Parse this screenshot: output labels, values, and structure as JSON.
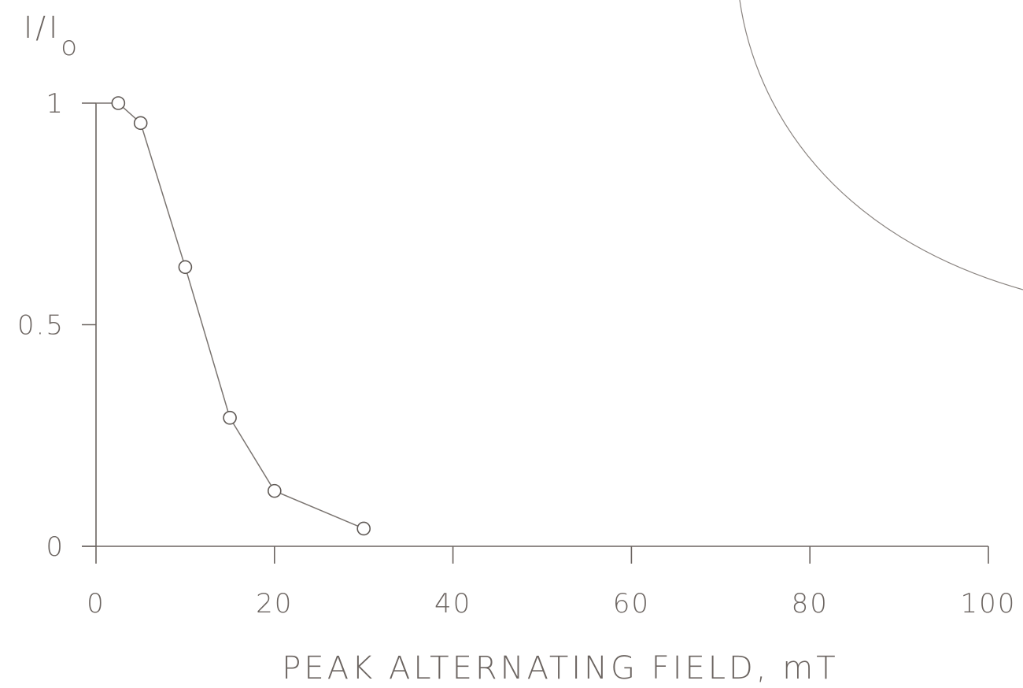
{
  "chart_data": {
    "type": "line",
    "title": "",
    "ylabel": "I/I",
    "ylabel_subscript": "o",
    "xlabel": "PEAK ALTERNATING FIELD, mT",
    "xlim": [
      0,
      100
    ],
    "ylim": [
      0,
      1
    ],
    "x_ticks": [
      0,
      20,
      40,
      60,
      80,
      100
    ],
    "x_tick_labels": [
      "0",
      "20",
      "40",
      "60",
      "80",
      "100"
    ],
    "y_ticks": [
      0,
      0.5,
      1
    ],
    "y_tick_labels": [
      "0",
      "0.5",
      "1"
    ],
    "grid": false,
    "legend": "none",
    "series": [
      {
        "marker": "open-circle",
        "x": [
          2.5,
          5,
          10,
          15,
          20,
          30
        ],
        "y": [
          1.0,
          0.955,
          0.63,
          0.29,
          0.125,
          0.04
        ]
      }
    ],
    "colors": {
      "ink": "#6b6460",
      "line": "#7a7470"
    }
  }
}
